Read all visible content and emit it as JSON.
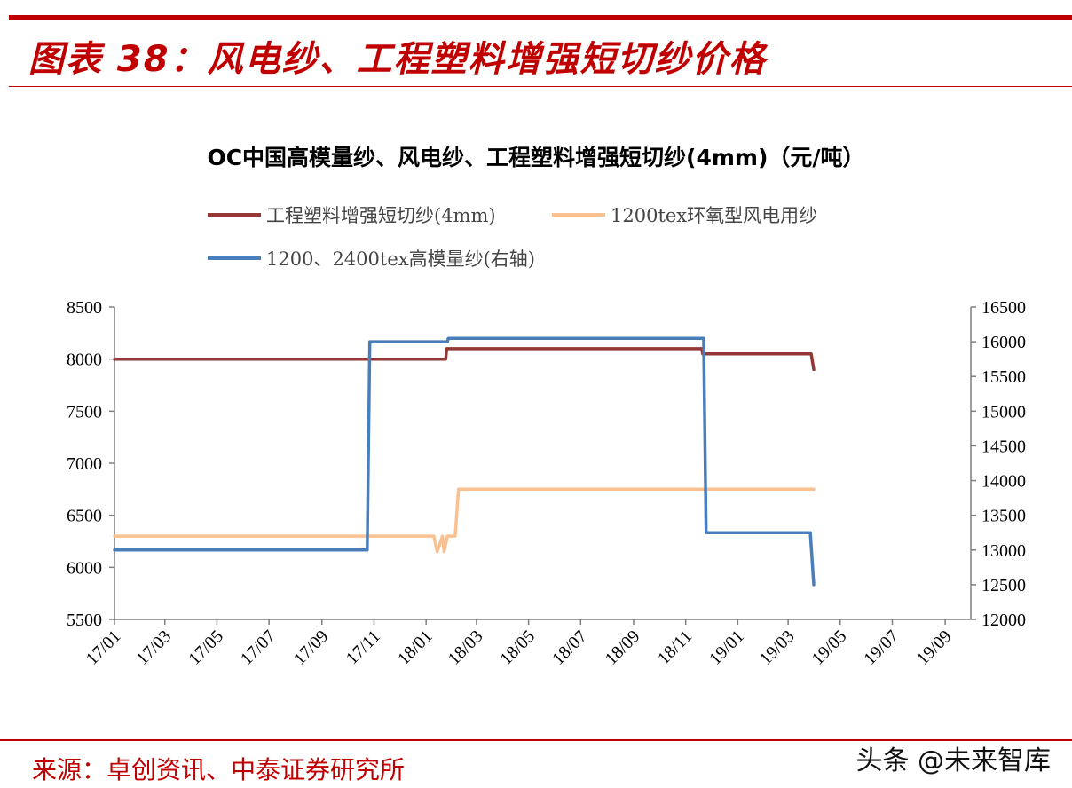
{
  "header": {
    "figure_title": "图表 38：风电纱、工程塑料增强短切纱价格"
  },
  "footer": {
    "source": "来源：卓创资讯、中泰证券研究所",
    "watermark": "头条 @未来智库"
  },
  "colors": {
    "brand_red": "#c00000",
    "series_engineering": "#953735",
    "series_wind": "#fac090",
    "series_highmod": "#4a7ebb"
  },
  "chart_data": {
    "type": "line",
    "title": "OC中国高模量纱、风电纱、工程塑料增强短切纱(4mm)（元/吨）",
    "xlabel": "",
    "ylabel": "",
    "x_ticks": [
      "17/01",
      "17/03",
      "17/05",
      "17/07",
      "17/09",
      "17/11",
      "18/01",
      "18/03",
      "18/05",
      "18/07",
      "18/09",
      "18/11",
      "19/01",
      "19/03",
      "19/05",
      "19/07",
      "19/09"
    ],
    "xlim": [
      "2017-01-01",
      "2019-10-01"
    ],
    "ylim": [
      5500,
      8500
    ],
    "y_ticks": [
      5500,
      6000,
      6500,
      7000,
      7500,
      8000,
      8500
    ],
    "y2lim": [
      12000,
      16500
    ],
    "y2_ticks": [
      12000,
      12500,
      13000,
      13500,
      14000,
      14500,
      15000,
      15500,
      16000,
      16500
    ],
    "legend_position": "top",
    "grid": false,
    "series": [
      {
        "name": "工程塑料增强短切纱(4mm)",
        "axis": "left",
        "color": "#953735",
        "points": [
          [
            "2017-01-01",
            8000
          ],
          [
            "2018-01-24",
            8000
          ],
          [
            "2018-01-25",
            8100
          ],
          [
            "2018-11-20",
            8100
          ],
          [
            "2018-11-21",
            8050
          ],
          [
            "2019-03-28",
            8050
          ],
          [
            "2019-03-31",
            7900
          ]
        ]
      },
      {
        "name": "1200tex环氧型风电用纱",
        "axis": "left",
        "color": "#fac090",
        "points": [
          [
            "2017-01-01",
            6300
          ],
          [
            "2018-01-10",
            6300
          ],
          [
            "2018-01-14",
            6150
          ],
          [
            "2018-01-20",
            6300
          ],
          [
            "2018-01-22",
            6150
          ],
          [
            "2018-01-26",
            6300
          ],
          [
            "2018-02-04",
            6300
          ],
          [
            "2018-02-08",
            6750
          ],
          [
            "2019-03-31",
            6750
          ]
        ]
      },
      {
        "name": "1200、2400tex高模量纱(右轴)",
        "axis": "right",
        "color": "#4a7ebb",
        "points": [
          [
            "2017-01-01",
            13000
          ],
          [
            "2017-10-24",
            13000
          ],
          [
            "2017-10-27",
            16000
          ],
          [
            "2018-01-26",
            16000
          ],
          [
            "2018-01-27",
            16050
          ],
          [
            "2018-11-22",
            16050
          ],
          [
            "2018-11-25",
            13250
          ],
          [
            "2019-03-27",
            13250
          ],
          [
            "2019-03-31",
            12500
          ]
        ]
      }
    ]
  }
}
